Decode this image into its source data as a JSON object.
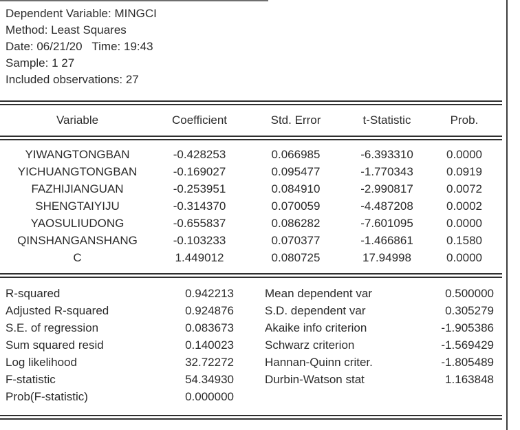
{
  "window": {
    "background": "#ffffff",
    "text_color": "#2b2b2b",
    "rule_color": "#2f2f2f",
    "right_border_color": "#3c3c3c"
  },
  "header": {
    "lines": [
      "Dependent Variable: MINGCI",
      "Method: Least Squares",
      "Date: 06/21/20   Time: 19:43",
      "Sample: 1 27",
      "Included observations: 27"
    ]
  },
  "coef_table": {
    "columns": [
      "Variable",
      "Coefficient",
      "Std. Error",
      "t-Statistic",
      "Prob."
    ],
    "rows": [
      [
        "YIWANGTONGBAN",
        "-0.428253",
        "0.066985",
        "-6.393310",
        "0.0000"
      ],
      [
        "YICHUANGTONGBAN",
        "-0.169027",
        "0.095477",
        "-1.770343",
        "0.0919"
      ],
      [
        "FAZHIJIANGUAN",
        "-0.253951",
        "0.084910",
        "-2.990817",
        "0.0072"
      ],
      [
        "SHENGTAIYIJU",
        "-0.314370",
        "0.070059",
        "-4.487208",
        "0.0002"
      ],
      [
        "YAOSULIUDONG",
        "-0.655837",
        "0.086282",
        "-7.601095",
        "0.0000"
      ],
      [
        "QINSHANGANSHANG",
        "-0.103233",
        "0.070377",
        "-1.466861",
        "0.1580"
      ],
      [
        "C",
        "1.449012",
        "0.080725",
        "17.94998",
        "0.0000"
      ]
    ]
  },
  "summary": {
    "left": [
      {
        "label": "R-squared",
        "value": "0.942213"
      },
      {
        "label": "Adjusted R-squared",
        "value": "0.924876"
      },
      {
        "label": "S.E. of regression",
        "value": "0.083673"
      },
      {
        "label": "Sum squared resid",
        "value": "0.140023"
      },
      {
        "label": "Log likelihood",
        "value": "32.72272"
      },
      {
        "label": "F-statistic",
        "value": "54.34930"
      },
      {
        "label": "Prob(F-statistic)",
        "value": "0.000000"
      }
    ],
    "right": [
      {
        "label": "Mean dependent var",
        "value": "0.500000"
      },
      {
        "label": "S.D. dependent var",
        "value": "0.305279"
      },
      {
        "label": "Akaike info criterion",
        "value": "-1.905386"
      },
      {
        "label": "Schwarz criterion",
        "value": "-1.569429"
      },
      {
        "label": "Hannan-Quinn criter.",
        "value": "-1.805489"
      },
      {
        "label": "Durbin-Watson stat",
        "value": "1.163848"
      }
    ]
  }
}
